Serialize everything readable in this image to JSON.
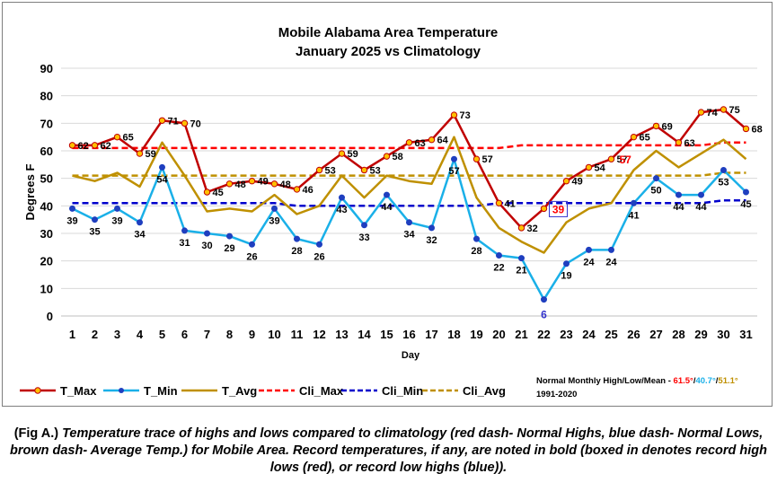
{
  "chart_data": {
    "type": "line",
    "title": "Mobile Alabama Area Temperature",
    "subtitle": "January 2025 vs Climatology",
    "xlabel": "Day",
    "ylabel": "Degrees F",
    "ylim": [
      0,
      90
    ],
    "yticks": [
      "0",
      "10",
      "20",
      "30",
      "40",
      "50",
      "60",
      "70",
      "80",
      "90"
    ],
    "grid": true,
    "legend_position": "bottom",
    "categories": [
      "1",
      "2",
      "3",
      "4",
      "5",
      "6",
      "7",
      "8",
      "9",
      "10",
      "11",
      "12",
      "13",
      "14",
      "15",
      "16",
      "17",
      "18",
      "19",
      "20",
      "21",
      "22",
      "23",
      "24",
      "25",
      "26",
      "27",
      "28",
      "29",
      "30",
      "31"
    ],
    "series": [
      {
        "name": "T_Max",
        "color": "#c00000",
        "values": [
          62,
          62,
          65,
          59,
          71,
          70,
          45,
          48,
          49,
          48,
          46,
          53,
          59,
          53,
          58,
          63,
          64,
          73,
          57,
          41,
          32,
          39,
          49,
          54,
          57,
          65,
          69,
          63,
          74,
          75,
          68
        ]
      },
      {
        "name": "T_Min",
        "color": "#1ab0e8",
        "values": [
          39,
          35,
          39,
          34,
          54,
          31,
          30,
          29,
          26,
          39,
          28,
          26,
          43,
          33,
          44,
          34,
          32,
          57,
          28,
          22,
          21,
          6,
          19,
          24,
          24,
          41,
          50,
          44,
          44,
          53,
          45
        ]
      },
      {
        "name": "T_Avg",
        "color": "#bf9000",
        "values": [
          51,
          49,
          52,
          47,
          63,
          51,
          38,
          39,
          38,
          44,
          37,
          40,
          51,
          43,
          51,
          49,
          48,
          65,
          43,
          32,
          27,
          23,
          34,
          39,
          41,
          53,
          60,
          54,
          59,
          64,
          57
        ]
      },
      {
        "name": "Cli_Max",
        "color": "#ff0000",
        "values": [
          61,
          61,
          61,
          61,
          61,
          61,
          61,
          61,
          61,
          61,
          61,
          61,
          61,
          61,
          61,
          61,
          61,
          61,
          61,
          61,
          62,
          62,
          62,
          62,
          62,
          62,
          62,
          62,
          62,
          63,
          63
        ]
      },
      {
        "name": "Cli_Min",
        "color": "#0000cc",
        "values": [
          41,
          41,
          41,
          41,
          41,
          41,
          41,
          41,
          41,
          41,
          40,
          40,
          40,
          40,
          40,
          40,
          40,
          40,
          40,
          41,
          41,
          41,
          41,
          41,
          41,
          41,
          41,
          41,
          41,
          42,
          42
        ]
      },
      {
        "name": "Cli_Avg",
        "color": "#bf9000",
        "values": [
          51,
          51,
          51,
          51,
          51,
          51,
          51,
          51,
          51,
          51,
          51,
          51,
          51,
          51,
          51,
          51,
          51,
          51,
          51,
          51,
          51,
          51,
          51,
          51,
          51,
          51,
          51,
          51,
          51,
          52,
          52
        ]
      }
    ],
    "max_labels": [
      "62",
      "62",
      "65",
      "59",
      "71",
      "70",
      "45",
      "48",
      "49",
      "48",
      "46",
      "53",
      "59",
      "53",
      "58",
      "63",
      "64",
      "73",
      "57",
      "41",
      "32",
      "",
      "49",
      "54",
      "57",
      "65",
      "69",
      "63",
      "74",
      "75",
      "68"
    ],
    "min_labels": [
      "39",
      "35",
      "39",
      "34",
      "54",
      "31",
      "30",
      "29",
      "26",
      "39",
      "28",
      "26",
      "43",
      "33",
      "44",
      "34",
      "32",
      "57",
      "28",
      "22",
      "21",
      "6",
      "19",
      "24",
      "24",
      "41",
      "50",
      "44",
      "44",
      "53",
      "45"
    ],
    "record_labels": [
      {
        "day": "22",
        "text": "39",
        "color": "#ff0000",
        "boxed": true
      },
      {
        "day": "25",
        "text": "57",
        "color": "#ff0000",
        "boxed": false
      },
      {
        "day": "22",
        "text": "6",
        "color": "#3333cc",
        "boxed": false
      }
    ],
    "normals_note": {
      "prefix": "Normal Monthly High/Low/Mean - ",
      "high": "61.5°",
      "sep1": "/",
      "low": "40.7°",
      "sep2": "/",
      "mean": "51.1°",
      "period": "1991-2020",
      "high_color": "#ff0000",
      "low_color": "#1ab0e8",
      "mean_color": "#bf9000"
    }
  },
  "caption": {
    "lead": "(Fig A.) ",
    "text": "Temperature trace of highs and lows compared to climatology (red dash- Normal Highs, blue dash- Normal Lows, brown dash- Average Temp.) for Mobile Area. Record temperatures, if any, are noted in bold (boxed in denotes record high lows (red), or record low highs (blue))."
  }
}
